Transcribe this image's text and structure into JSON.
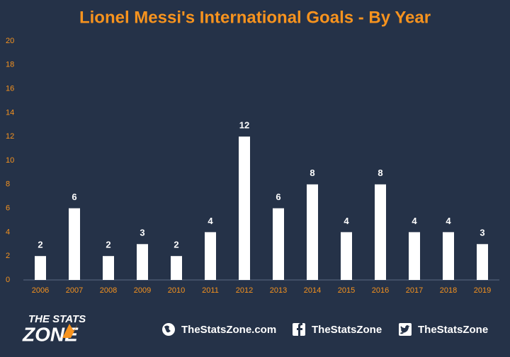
{
  "chart_data": {
    "type": "bar",
    "title": "Lionel Messi's International Goals - By Year",
    "categories": [
      "2006",
      "2007",
      "2008",
      "2009",
      "2010",
      "2011",
      "2012",
      "2013",
      "2014",
      "2015",
      "2016",
      "2017",
      "2018",
      "2019"
    ],
    "values": [
      2,
      6,
      2,
      3,
      2,
      4,
      12,
      6,
      8,
      4,
      8,
      4,
      4,
      3
    ],
    "color": "#ffffff",
    "ylim": [
      0,
      20
    ],
    "yticks": [
      0,
      2,
      4,
      6,
      8,
      10,
      12,
      14,
      16,
      18,
      20
    ],
    "grid": false
  },
  "footer": {
    "logo_top": "THE STATS",
    "logo_bottom": "ZONE",
    "website": "TheStatsZone.com",
    "facebook": "TheStatsZone",
    "twitter": "TheStatsZone"
  }
}
